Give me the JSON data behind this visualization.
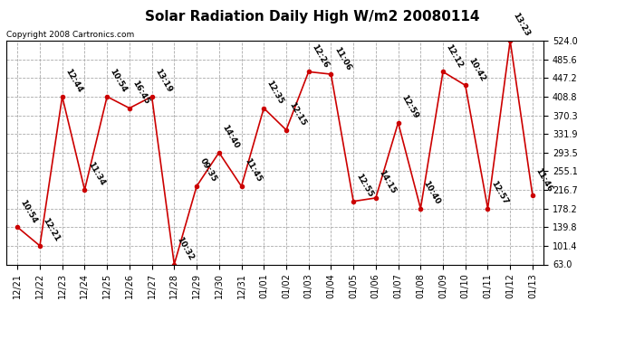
{
  "title": "Solar Radiation Daily High W/m2 20080114",
  "copyright": "Copyright 2008 Cartronics.com",
  "x_labels": [
    "12/21",
    "12/22",
    "12/23",
    "12/24",
    "12/25",
    "12/26",
    "12/27",
    "12/28",
    "12/29",
    "12/30",
    "12/31",
    "01/01",
    "01/02",
    "01/03",
    "01/04",
    "01/05",
    "01/06",
    "01/07",
    "01/08",
    "01/09",
    "01/10",
    "01/11",
    "01/12",
    "01/13"
  ],
  "y_values": [
    139.8,
    101.4,
    408.8,
    216.7,
    408.8,
    385.0,
    408.8,
    63.0,
    224.0,
    293.5,
    224.0,
    385.0,
    340.0,
    460.0,
    455.0,
    193.0,
    200.0,
    355.0,
    178.2,
    460.0,
    432.0,
    178.2,
    524.0,
    205.0
  ],
  "time_labels": [
    "10:54",
    "12:21",
    "12:44",
    "11:34",
    "10:54",
    "16:45",
    "13:19",
    "10:32",
    "09:35",
    "14:40",
    "11:45",
    "12:35",
    "12:15",
    "12:26",
    "11:06",
    "12:55",
    "14:15",
    "12:59",
    "10:40",
    "12:12",
    "10:42",
    "12:57",
    "13:23",
    "11:46"
  ],
  "line_color": "#cc0000",
  "marker_color": "#cc0000",
  "bg_color": "#ffffff",
  "grid_color": "#aaaaaa",
  "y_min": 63.0,
  "y_max": 524.0,
  "y_ticks": [
    63.0,
    101.4,
    139.8,
    178.2,
    216.7,
    255.1,
    293.5,
    331.9,
    370.3,
    408.8,
    447.2,
    485.6,
    524.0
  ],
  "title_fontsize": 11,
  "label_fontsize": 6.5,
  "tick_fontsize": 7,
  "copyright_fontsize": 6.5
}
